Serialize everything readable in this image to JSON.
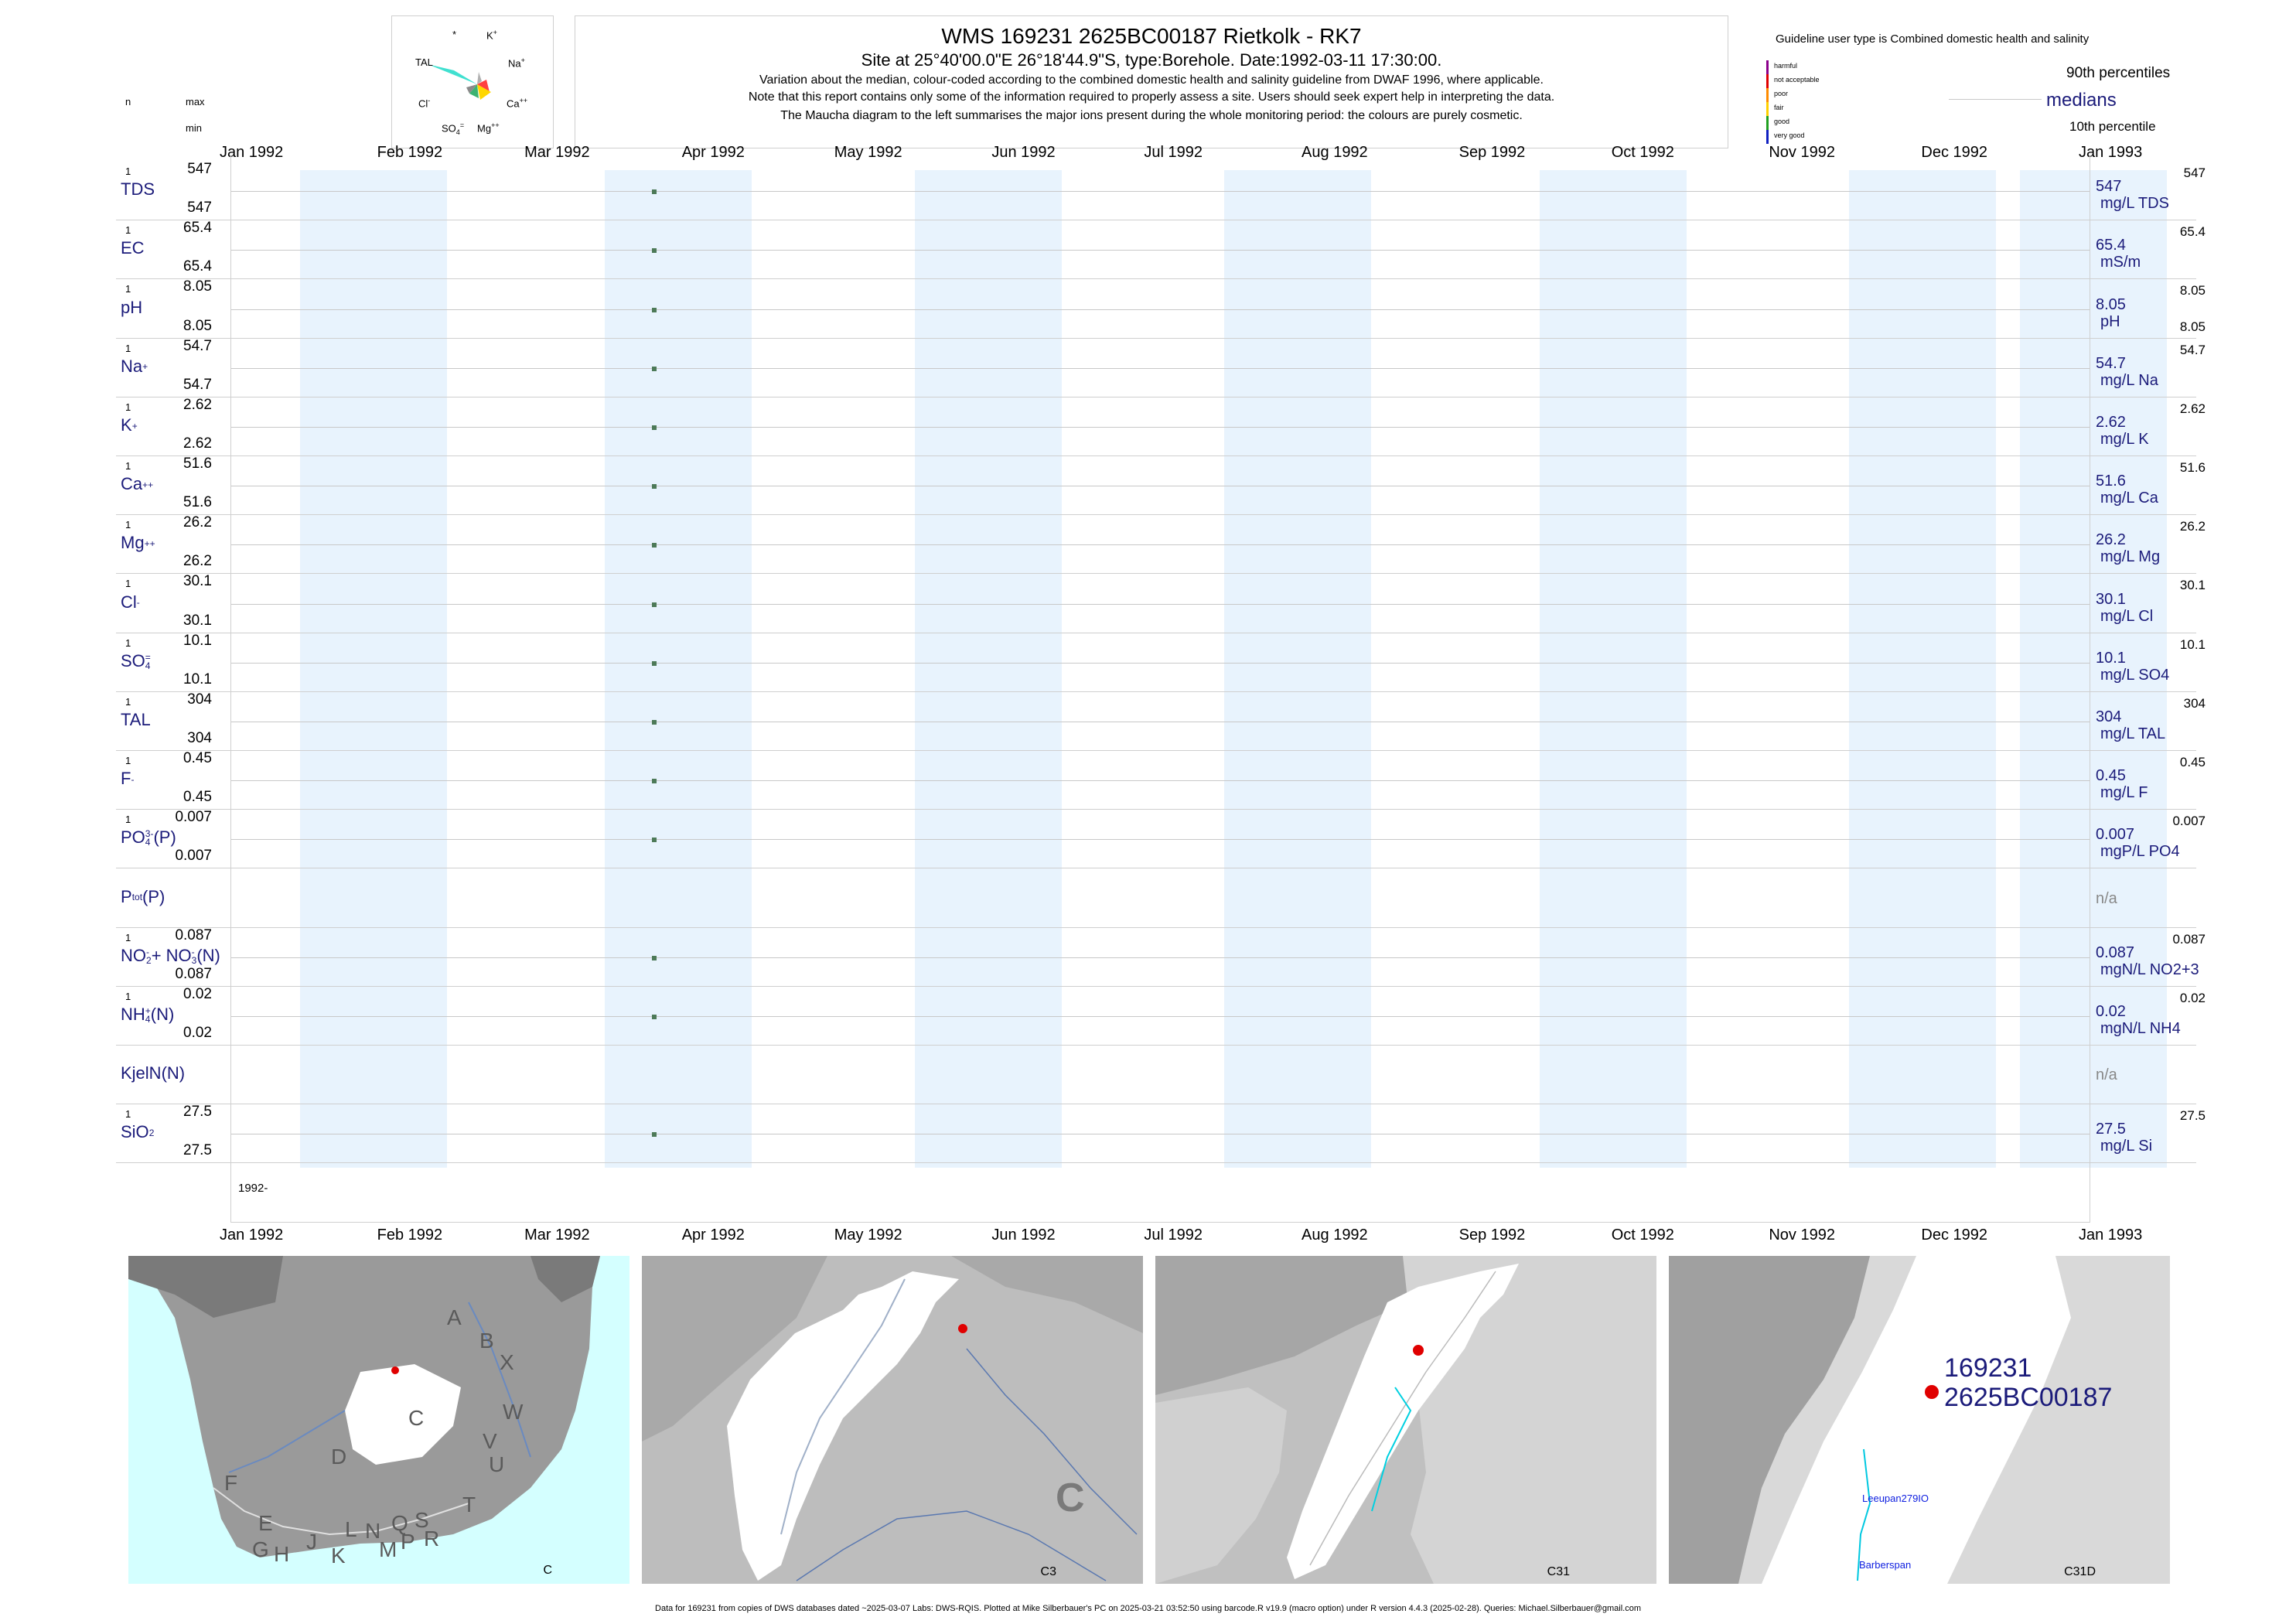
{
  "header": {
    "title": "WMS 169231 2625BC00187 Rietkolk - RK7",
    "subtitle": "Site at 25°40'00.0\"E 26°18'44.9\"S, type:Borehole. Date:1992-03-11 17:30:00.",
    "note1": "Variation about the median,  colour-coded according to the combined domestic health and salinity guideline from DWAF 1996, where applicable.",
    "note2": "Note that this report contains only some of the information required to properly assess a site. Users should seek expert help in interpreting the data.",
    "note3": "The Maucha diagram to the left summarises the major ions present during the whole monitoring period: the colours are purely cosmetic."
  },
  "maucha": {
    "labels": {
      "star": "*",
      "k": "K",
      "k_sup": "+",
      "tal": "TAL",
      "na": "Na",
      "na_sup": "+",
      "cl": "Cl",
      "cl_sup": "-",
      "ca": "Ca",
      "ca_sup": "++",
      "so4": "SO",
      "so4_sub": "4",
      "so4_sup": "=",
      "mg": "Mg",
      "mg_sup": "++"
    },
    "colors": {
      "tal": "#40e0d0",
      "na": "#ff4040",
      "ca": "#ffd700",
      "mg": "#3cb371",
      "so4": "#8a8a8a",
      "cl": "#a0a0ff",
      "k": "#c0c0c0"
    }
  },
  "left_header": {
    "n": "n",
    "max": "max",
    "min": "min"
  },
  "legend": {
    "guideline_text": "Guideline user type is Combined domestic health and salinity",
    "classes": [
      "harmful",
      "not acceptable",
      "poor",
      "fair",
      "good",
      "very good"
    ],
    "class_colors": [
      "#8b008b",
      "#e00000",
      "#ff8c00",
      "#ffd000",
      "#20a020",
      "#1020c0"
    ],
    "p90": "90th percentiles",
    "medians": "medians",
    "p10": "10th percentile"
  },
  "months": [
    "Jan 1992",
    "Feb 1992",
    "Mar 1992",
    "Apr 1992",
    "May 1992",
    "Jun 1992",
    "Jul 1992",
    "Aug 1992",
    "Sep 1992",
    "Oct 1992",
    "Nov 1992",
    "Dec 1992",
    "Jan 1993"
  ],
  "year_label": "1992-",
  "chart_data": {
    "type": "scatter",
    "sample_date": "1992-03-11",
    "x_range": [
      "1992-01-01",
      "1993-01-01"
    ],
    "panels": [
      {
        "label": "TDS",
        "n": "1",
        "max": "547",
        "min": "547",
        "median": "547",
        "p90": "547",
        "unit": "mg/L TDS"
      },
      {
        "label": "EC",
        "n": "1",
        "max": "65.4",
        "min": "65.4",
        "median": "65.4",
        "p90": "65.4",
        "unit": "mS/m"
      },
      {
        "label": "pH",
        "n": "1",
        "max": "8.05",
        "min": "8.05",
        "median": "8.05",
        "p90": "8.05",
        "p10": "8.05",
        "unit": "pH"
      },
      {
        "label": "Na",
        "sup": "+",
        "n": "1",
        "max": "54.7",
        "min": "54.7",
        "median": "54.7",
        "p90": "54.7",
        "unit": "mg/L Na"
      },
      {
        "label": "K",
        "sup": "+",
        "n": "1",
        "max": "2.62",
        "min": "2.62",
        "median": "2.62",
        "p90": "2.62",
        "unit": "mg/L K"
      },
      {
        "label": "Ca",
        "sup": "++",
        "n": "1",
        "max": "51.6",
        "min": "51.6",
        "median": "51.6",
        "p90": "51.6",
        "unit": "mg/L Ca"
      },
      {
        "label": "Mg",
        "sup": "++",
        "n": "1",
        "max": "26.2",
        "min": "26.2",
        "median": "26.2",
        "p90": "26.2",
        "unit": "mg/L Mg"
      },
      {
        "label": "Cl",
        "sup": "-",
        "n": "1",
        "max": "30.1",
        "min": "30.1",
        "median": "30.1",
        "p90": "30.1",
        "unit": "mg/L Cl"
      },
      {
        "label": "SO",
        "sub": "4",
        "sup": "=",
        "n": "1",
        "max": "10.1",
        "min": "10.1",
        "median": "10.1",
        "p90": "10.1",
        "unit": "mg/L SO4"
      },
      {
        "label": "TAL",
        "n": "1",
        "max": "304",
        "min": "304",
        "median": "304",
        "p90": "304",
        "unit": "mg/L TAL"
      },
      {
        "label": "F",
        "sup": "-",
        "n": "1",
        "max": "0.45",
        "min": "0.45",
        "median": "0.45",
        "p90": "0.45",
        "unit": "mg/L F"
      },
      {
        "label": "PO",
        "sub": "4",
        "sup": "3-",
        "suffix": "(P)",
        "n": "1",
        "max": "0.007",
        "min": "0.007",
        "median": "0.007",
        "p90": "0.007",
        "unit": "mgP/L PO4"
      },
      {
        "label": "P",
        "sub": "tot",
        "suffix": "(P)",
        "median": "n/a"
      },
      {
        "label": "NO",
        "sub": "2",
        "sup": "-",
        "suffix": "+ NO",
        "sub2": "3",
        "sup2": "-",
        "suffix2": "(N)",
        "n": "1",
        "max": "0.087",
        "min": "0.087",
        "median": "0.087",
        "p90": "0.087",
        "unit": "mgN/L NO2+3"
      },
      {
        "label": "NH",
        "sub": "4",
        "sup": "+",
        "suffix": "(N)",
        "n": "1",
        "max": "0.02",
        "min": "0.02",
        "median": "0.02",
        "p90": "0.02",
        "unit": "mgN/L NH4"
      },
      {
        "label": "KjelN(N)",
        "median": "n/a"
      },
      {
        "label": "SiO",
        "sub": "2",
        "n": "1",
        "max": "27.5",
        "min": "27.5",
        "median": "27.5",
        "p90": "27.5",
        "unit": "mg/L Si"
      }
    ]
  },
  "maps": {
    "m1": {
      "label": "C",
      "letters": [
        "A",
        "B",
        "X",
        "W",
        "C",
        "D",
        "V",
        "U",
        "T",
        "F",
        "E",
        "G",
        "H",
        "J",
        "K",
        "L",
        "N",
        "Q",
        "S",
        "M",
        "P",
        "R"
      ]
    },
    "m2": {
      "label": "C3",
      "region": "C"
    },
    "m3": {
      "label": "C31"
    },
    "m4": {
      "label": "C31D",
      "site_id": "169231",
      "site_code": "2625BC00187",
      "place1": "Leeupan279IO",
      "place2": "Barberspan"
    }
  },
  "footer": "Data for 169231 from copies of DWS databases dated ~2025-03-07 Labs: DWS-RQIS. Plotted at Mike Silberbauer's PC on 2025-03-21 03:52:50 using barcode.R v19.9 (macro option) under R version 4.4.3 (2025-02-28). Queries: Michael.Silberbauer@gmail.com"
}
